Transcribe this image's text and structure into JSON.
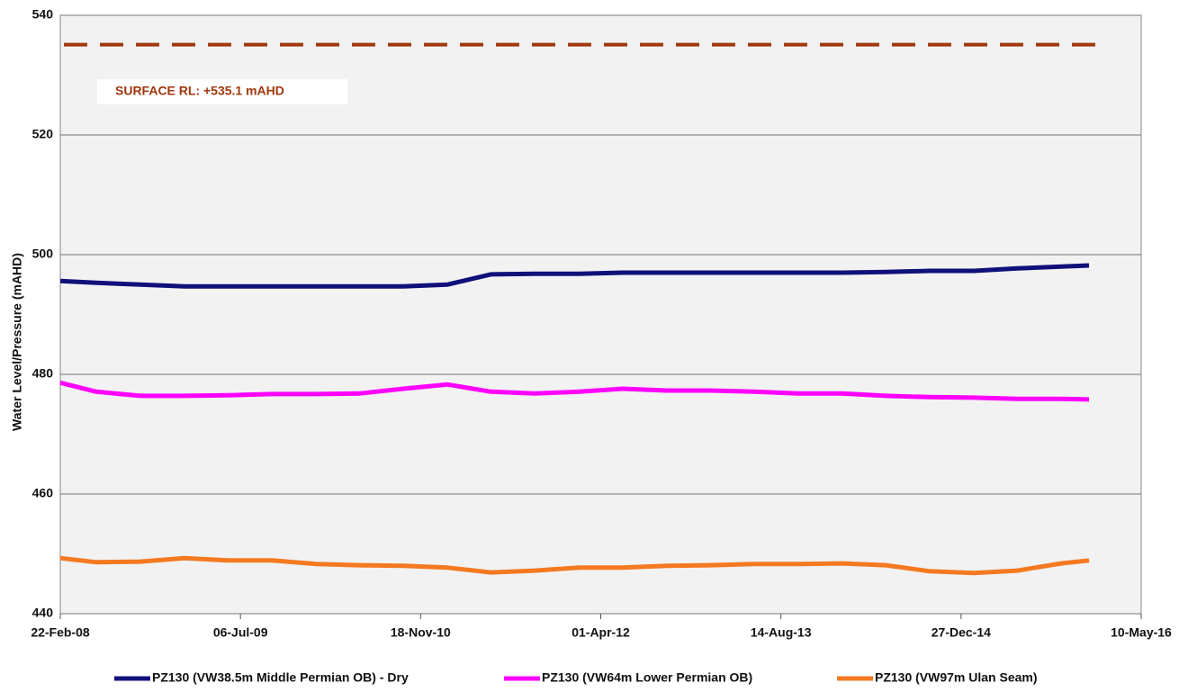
{
  "chart_data": {
    "type": "line",
    "y_label": "Water Level/Pressure  (mAHD)",
    "annotation": "SURFACE  RL: +535.1 mAHD",
    "surface_level": 535.1,
    "surface_color": "#a0380e",
    "grid": true,
    "legend": "bottom",
    "xlim": [
      "2008-02-22",
      "2016-05-10"
    ],
    "xticks": [
      {
        "value": "2008-02-22",
        "label": "22-Feb-08"
      },
      {
        "value": "2009-07-06",
        "label": "06-Jul-09"
      },
      {
        "value": "2010-11-18",
        "label": "18-Nov-10"
      },
      {
        "value": "2012-04-01",
        "label": "01-Apr-12"
      },
      {
        "value": "2013-08-14",
        "label": "14-Aug-13"
      },
      {
        "value": "2014-12-27",
        "label": "27-Dec-14"
      },
      {
        "value": "2016-05-10",
        "label": "10-May-16"
      }
    ],
    "ylim": [
      440,
      540
    ],
    "yticks": [
      440,
      460,
      480,
      500,
      520,
      540
    ],
    "x": [
      "2008-02-22",
      "2008-06-01",
      "2008-10-01",
      "2009-02-01",
      "2009-06-01",
      "2009-10-01",
      "2010-02-01",
      "2010-06-01",
      "2010-10-01",
      "2011-02-01",
      "2011-06-01",
      "2011-10-01",
      "2012-02-01",
      "2012-06-01",
      "2012-10-01",
      "2013-02-01",
      "2013-06-01",
      "2013-10-01",
      "2014-02-01",
      "2014-06-01",
      "2014-10-01",
      "2015-02-01",
      "2015-06-01",
      "2015-10-01",
      "2015-12-17"
    ],
    "series": [
      {
        "name": "PZ130 (VW38.5m Middle Permian OB) - Dry",
        "color": "#10107a",
        "values": [
          495.6,
          495.3,
          495.0,
          494.7,
          494.7,
          494.7,
          494.7,
          494.7,
          494.7,
          495.0,
          496.7,
          496.8,
          496.8,
          497.0,
          497.0,
          497.0,
          497.0,
          497.0,
          497.0,
          497.1,
          497.3,
          497.3,
          497.7,
          498.0,
          498.2
        ]
      },
      {
        "name": "PZ130 (VW64m Lower Permian OB)",
        "color": "#ff00ff",
        "values": [
          478.6,
          477.1,
          476.4,
          476.4,
          476.5,
          476.7,
          476.7,
          476.8,
          477.6,
          478.3,
          477.1,
          476.8,
          477.1,
          477.6,
          477.3,
          477.3,
          477.1,
          476.8,
          476.8,
          476.4,
          476.2,
          476.1,
          475.9,
          475.9,
          475.8
        ]
      },
      {
        "name": "PZ130 (VW97m Ulan Seam)",
        "color": "#f47920",
        "values": [
          449.3,
          448.6,
          448.7,
          449.3,
          448.9,
          448.9,
          448.3,
          448.1,
          448.0,
          447.7,
          446.9,
          447.2,
          447.7,
          447.7,
          448.0,
          448.1,
          448.3,
          448.3,
          448.4,
          448.1,
          447.1,
          446.8,
          447.2,
          448.4,
          448.9
        ]
      }
    ]
  }
}
